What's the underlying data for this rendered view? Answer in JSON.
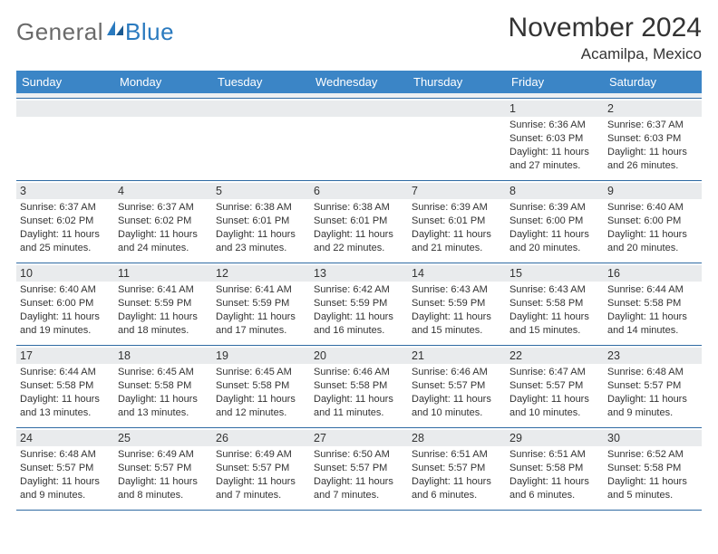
{
  "logo": {
    "text1": "General",
    "text2": "Blue"
  },
  "title": "November 2024",
  "location": "Acamilpa, Mexico",
  "colors": {
    "headerBar": "#3b85c6",
    "headerText": "#ffffff",
    "dayBg": "#e9ebed",
    "border": "#2f6aa3",
    "logoGray": "#6a6a6a",
    "logoBlue": "#2a7abf"
  },
  "dayHeaders": [
    "Sunday",
    "Monday",
    "Tuesday",
    "Wednesday",
    "Thursday",
    "Friday",
    "Saturday"
  ],
  "weeks": [
    [
      {
        "day": "",
        "sunrise": "",
        "sunset": "",
        "daylight": ""
      },
      {
        "day": "",
        "sunrise": "",
        "sunset": "",
        "daylight": ""
      },
      {
        "day": "",
        "sunrise": "",
        "sunset": "",
        "daylight": ""
      },
      {
        "day": "",
        "sunrise": "",
        "sunset": "",
        "daylight": ""
      },
      {
        "day": "",
        "sunrise": "",
        "sunset": "",
        "daylight": ""
      },
      {
        "day": "1",
        "sunrise": "Sunrise: 6:36 AM",
        "sunset": "Sunset: 6:03 PM",
        "daylight": "Daylight: 11 hours and 27 minutes."
      },
      {
        "day": "2",
        "sunrise": "Sunrise: 6:37 AM",
        "sunset": "Sunset: 6:03 PM",
        "daylight": "Daylight: 11 hours and 26 minutes."
      }
    ],
    [
      {
        "day": "3",
        "sunrise": "Sunrise: 6:37 AM",
        "sunset": "Sunset: 6:02 PM",
        "daylight": "Daylight: 11 hours and 25 minutes."
      },
      {
        "day": "4",
        "sunrise": "Sunrise: 6:37 AM",
        "sunset": "Sunset: 6:02 PM",
        "daylight": "Daylight: 11 hours and 24 minutes."
      },
      {
        "day": "5",
        "sunrise": "Sunrise: 6:38 AM",
        "sunset": "Sunset: 6:01 PM",
        "daylight": "Daylight: 11 hours and 23 minutes."
      },
      {
        "day": "6",
        "sunrise": "Sunrise: 6:38 AM",
        "sunset": "Sunset: 6:01 PM",
        "daylight": "Daylight: 11 hours and 22 minutes."
      },
      {
        "day": "7",
        "sunrise": "Sunrise: 6:39 AM",
        "sunset": "Sunset: 6:01 PM",
        "daylight": "Daylight: 11 hours and 21 minutes."
      },
      {
        "day": "8",
        "sunrise": "Sunrise: 6:39 AM",
        "sunset": "Sunset: 6:00 PM",
        "daylight": "Daylight: 11 hours and 20 minutes."
      },
      {
        "day": "9",
        "sunrise": "Sunrise: 6:40 AM",
        "sunset": "Sunset: 6:00 PM",
        "daylight": "Daylight: 11 hours and 20 minutes."
      }
    ],
    [
      {
        "day": "10",
        "sunrise": "Sunrise: 6:40 AM",
        "sunset": "Sunset: 6:00 PM",
        "daylight": "Daylight: 11 hours and 19 minutes."
      },
      {
        "day": "11",
        "sunrise": "Sunrise: 6:41 AM",
        "sunset": "Sunset: 5:59 PM",
        "daylight": "Daylight: 11 hours and 18 minutes."
      },
      {
        "day": "12",
        "sunrise": "Sunrise: 6:41 AM",
        "sunset": "Sunset: 5:59 PM",
        "daylight": "Daylight: 11 hours and 17 minutes."
      },
      {
        "day": "13",
        "sunrise": "Sunrise: 6:42 AM",
        "sunset": "Sunset: 5:59 PM",
        "daylight": "Daylight: 11 hours and 16 minutes."
      },
      {
        "day": "14",
        "sunrise": "Sunrise: 6:43 AM",
        "sunset": "Sunset: 5:59 PM",
        "daylight": "Daylight: 11 hours and 15 minutes."
      },
      {
        "day": "15",
        "sunrise": "Sunrise: 6:43 AM",
        "sunset": "Sunset: 5:58 PM",
        "daylight": "Daylight: 11 hours and 15 minutes."
      },
      {
        "day": "16",
        "sunrise": "Sunrise: 6:44 AM",
        "sunset": "Sunset: 5:58 PM",
        "daylight": "Daylight: 11 hours and 14 minutes."
      }
    ],
    [
      {
        "day": "17",
        "sunrise": "Sunrise: 6:44 AM",
        "sunset": "Sunset: 5:58 PM",
        "daylight": "Daylight: 11 hours and 13 minutes."
      },
      {
        "day": "18",
        "sunrise": "Sunrise: 6:45 AM",
        "sunset": "Sunset: 5:58 PM",
        "daylight": "Daylight: 11 hours and 13 minutes."
      },
      {
        "day": "19",
        "sunrise": "Sunrise: 6:45 AM",
        "sunset": "Sunset: 5:58 PM",
        "daylight": "Daylight: 11 hours and 12 minutes."
      },
      {
        "day": "20",
        "sunrise": "Sunrise: 6:46 AM",
        "sunset": "Sunset: 5:58 PM",
        "daylight": "Daylight: 11 hours and 11 minutes."
      },
      {
        "day": "21",
        "sunrise": "Sunrise: 6:46 AM",
        "sunset": "Sunset: 5:57 PM",
        "daylight": "Daylight: 11 hours and 10 minutes."
      },
      {
        "day": "22",
        "sunrise": "Sunrise: 6:47 AM",
        "sunset": "Sunset: 5:57 PM",
        "daylight": "Daylight: 11 hours and 10 minutes."
      },
      {
        "day": "23",
        "sunrise": "Sunrise: 6:48 AM",
        "sunset": "Sunset: 5:57 PM",
        "daylight": "Daylight: 11 hours and 9 minutes."
      }
    ],
    [
      {
        "day": "24",
        "sunrise": "Sunrise: 6:48 AM",
        "sunset": "Sunset: 5:57 PM",
        "daylight": "Daylight: 11 hours and 9 minutes."
      },
      {
        "day": "25",
        "sunrise": "Sunrise: 6:49 AM",
        "sunset": "Sunset: 5:57 PM",
        "daylight": "Daylight: 11 hours and 8 minutes."
      },
      {
        "day": "26",
        "sunrise": "Sunrise: 6:49 AM",
        "sunset": "Sunset: 5:57 PM",
        "daylight": "Daylight: 11 hours and 7 minutes."
      },
      {
        "day": "27",
        "sunrise": "Sunrise: 6:50 AM",
        "sunset": "Sunset: 5:57 PM",
        "daylight": "Daylight: 11 hours and 7 minutes."
      },
      {
        "day": "28",
        "sunrise": "Sunrise: 6:51 AM",
        "sunset": "Sunset: 5:57 PM",
        "daylight": "Daylight: 11 hours and 6 minutes."
      },
      {
        "day": "29",
        "sunrise": "Sunrise: 6:51 AM",
        "sunset": "Sunset: 5:58 PM",
        "daylight": "Daylight: 11 hours and 6 minutes."
      },
      {
        "day": "30",
        "sunrise": "Sunrise: 6:52 AM",
        "sunset": "Sunset: 5:58 PM",
        "daylight": "Daylight: 11 hours and 5 minutes."
      }
    ]
  ]
}
